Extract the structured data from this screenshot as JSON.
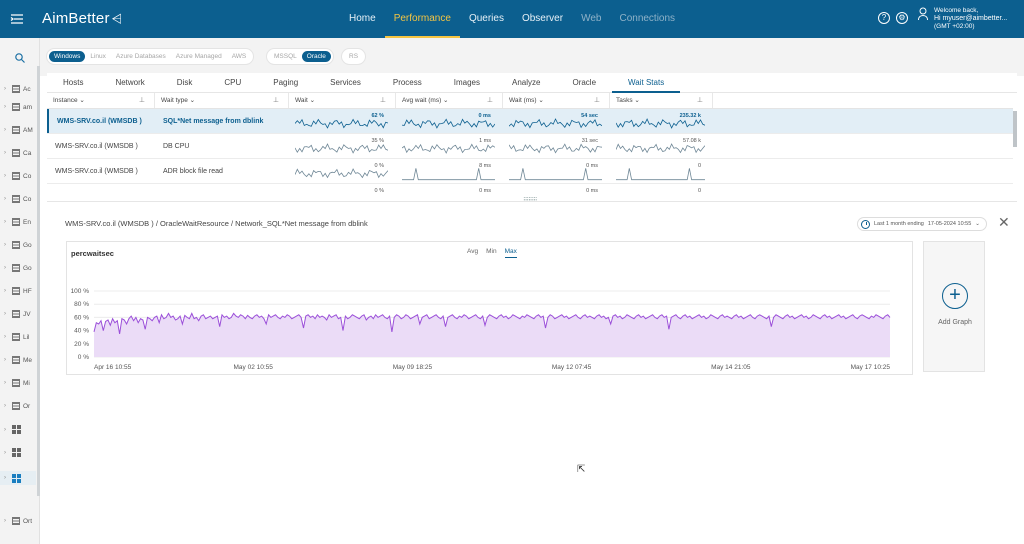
{
  "brand": {
    "name": "AimBetter"
  },
  "nav": [
    {
      "label": "Home",
      "state": "normal"
    },
    {
      "label": "Performance",
      "state": "active"
    },
    {
      "label": "Queries",
      "state": "normal"
    },
    {
      "label": "Observer",
      "state": "normal"
    },
    {
      "label": "Web",
      "state": "disabled"
    },
    {
      "label": "Connections",
      "state": "disabled"
    }
  ],
  "user": {
    "greeting": "Welcome back,",
    "name": "Hi myuser@aimbetter...",
    "tz": "(GMT +02:00)"
  },
  "rail": {
    "items": [
      {
        "label": "Ac",
        "type": "list"
      },
      {
        "label": "am",
        "type": "list"
      },
      {
        "label": "AM",
        "type": "list"
      },
      {
        "label": "Ca",
        "type": "list"
      },
      {
        "label": "Co",
        "type": "list"
      },
      {
        "label": "Co",
        "type": "list"
      },
      {
        "label": "En",
        "type": "list"
      },
      {
        "label": "Go",
        "type": "list"
      },
      {
        "label": "Go",
        "type": "list"
      },
      {
        "label": "HF",
        "type": "list"
      },
      {
        "label": "JV",
        "type": "list"
      },
      {
        "label": "Lil",
        "type": "list"
      },
      {
        "label": "Me",
        "type": "list"
      },
      {
        "label": "Mi",
        "type": "list"
      },
      {
        "label": "Or",
        "type": "list"
      },
      {
        "label": "",
        "type": "win"
      },
      {
        "label": "",
        "type": "win"
      },
      {
        "label": "",
        "type": "win-selected"
      },
      {
        "label": "Ort",
        "type": "list"
      }
    ]
  },
  "filters": {
    "os": [
      {
        "label": "Windows",
        "on": true
      },
      {
        "label": "Linux",
        "on": false
      },
      {
        "label": "Azure Databases",
        "on": false
      },
      {
        "label": "Azure Managed",
        "on": false
      },
      {
        "label": "AWS",
        "on": false
      }
    ],
    "db": [
      {
        "label": "MSSQL",
        "on": false
      },
      {
        "label": "Oracle",
        "on": true
      }
    ],
    "other": [
      {
        "label": "RS",
        "on": false
      }
    ]
  },
  "tabs": [
    {
      "label": "Hosts",
      "active": false
    },
    {
      "label": "Network",
      "active": false
    },
    {
      "label": "Disk",
      "active": false
    },
    {
      "label": "CPU",
      "active": false
    },
    {
      "label": "Paging",
      "active": false
    },
    {
      "label": "Services",
      "active": false
    },
    {
      "label": "Process",
      "active": false
    },
    {
      "label": "Images",
      "active": false
    },
    {
      "label": "Analyze",
      "active": false
    },
    {
      "label": "Oracle",
      "active": false
    },
    {
      "label": "Wait Stats",
      "active": true
    }
  ],
  "grid": {
    "columns": [
      "Instance",
      "Wait type",
      "Wait",
      "Avg wait (ms)",
      "Wait (ms)",
      "Tasks"
    ],
    "rows": [
      {
        "instance": "WMS-SRV.co.il (WMSDB )",
        "wait_type": "SQL*Net message from dblink",
        "wait": "62 %",
        "avg_wait": "0 ms",
        "wait_ms": "54 sec",
        "tasks": "235.32 k",
        "selected": true
      },
      {
        "instance": "WMS-SRV.co.il (WMSDB )",
        "wait_type": "DB CPU",
        "wait": "35 %",
        "avg_wait": "1 ms",
        "wait_ms": "31 sec",
        "tasks": "57.08 k",
        "selected": false
      },
      {
        "instance": "WMS-SRV.co.il (WMSDB )",
        "wait_type": "ADR block file read",
        "wait": "0 %",
        "avg_wait": "8 ms",
        "wait_ms": "0 ms",
        "tasks": "0",
        "selected": false
      },
      {
        "instance": "",
        "wait_type": "",
        "wait": "0 %",
        "avg_wait": "0 ms",
        "wait_ms": "0 ms",
        "tasks": "0",
        "selected": false
      }
    ]
  },
  "detail": {
    "breadcrumb": "WMS-SRV.co.il (WMSDB ) / OracleWaitResource / Network_SQL*Net message from dblink",
    "range_label": "Last 1 month ending",
    "range_date": "17-05-2024 10:55",
    "agg_options": [
      "Avg",
      "Min",
      "Max"
    ],
    "agg_selected": "Max",
    "add_graph_label": "Add Graph"
  },
  "colors": {
    "brand": "#0c5f8f",
    "active_nav": "#f5c542",
    "series": "#9b4fd9",
    "series_fill": "#ebdcf7"
  },
  "chart_data": {
    "type": "area",
    "title": "percwaitsec",
    "xlabel": "",
    "ylabel": "",
    "ylim": [
      0,
      100
    ],
    "yticks": [
      "0 %",
      "20 %",
      "40 %",
      "60 %",
      "80 %",
      "100 %"
    ],
    "xticks": [
      "Apr 16 10:55",
      "May 02 10:55",
      "May 09 18:25",
      "May 12 07:45",
      "May 14 21:05",
      "May 17 10:25"
    ],
    "series": [
      {
        "values": [
          38,
          52,
          50,
          55,
          40,
          54,
          56,
          48,
          58,
          52,
          55,
          35,
          58,
          56,
          50,
          58,
          62,
          55,
          60,
          52,
          58,
          56,
          42,
          60,
          58,
          55,
          60,
          62,
          52,
          64,
          58,
          60,
          66,
          60,
          62,
          56,
          58,
          62,
          50,
          63,
          60,
          58,
          66,
          58,
          60,
          55,
          62,
          64,
          58,
          60,
          62,
          58,
          60,
          62,
          46,
          64,
          60,
          62,
          58,
          60,
          66,
          62,
          60,
          64,
          62,
          58,
          63,
          60,
          58,
          62,
          64,
          60,
          62,
          58,
          50,
          64,
          60,
          62,
          64,
          60,
          58,
          62,
          60,
          64,
          62,
          58,
          60,
          62,
          64,
          60,
          44,
          62,
          64,
          60,
          62,
          58,
          64,
          60,
          62,
          60,
          56,
          64,
          60,
          62,
          64,
          58,
          60,
          40,
          62,
          58,
          60,
          64,
          62,
          60,
          58,
          62,
          64,
          56,
          60,
          62,
          58,
          64,
          60,
          62,
          64,
          60,
          58,
          62,
          38,
          60,
          64,
          62,
          58,
          60,
          64,
          62,
          58,
          60,
          62,
          64,
          50,
          60,
          62,
          64,
          58,
          60,
          62,
          64,
          60,
          58,
          62,
          46,
          60,
          62,
          64,
          60,
          58,
          62,
          60,
          64,
          62,
          58,
          60,
          62,
          64,
          60,
          58,
          62,
          48,
          60,
          64,
          62,
          60,
          58,
          62,
          64,
          60,
          62,
          58,
          60,
          64,
          62,
          60,
          58,
          62,
          60,
          64,
          62,
          60,
          58,
          62,
          64,
          60,
          62,
          44,
          60,
          64,
          62,
          58,
          60,
          62,
          64,
          60,
          62,
          58,
          60,
          62,
          64,
          60,
          58,
          62,
          64,
          60,
          62,
          60,
          58,
          62,
          64,
          60,
          62,
          58,
          60,
          50,
          62,
          64,
          60,
          62,
          58,
          60,
          64,
          62,
          60,
          58,
          62,
          64,
          60,
          62,
          58,
          60,
          62,
          64,
          60,
          58,
          62,
          64,
          60,
          62,
          42,
          60,
          62,
          64,
          60,
          58,
          62,
          64,
          60,
          62,
          58,
          60,
          62,
          64,
          60,
          62,
          58,
          60,
          64,
          62,
          60,
          58,
          62,
          64,
          60,
          62,
          60,
          58,
          62,
          64,
          60,
          62,
          58,
          60,
          62,
          64,
          60,
          58,
          62,
          64,
          62,
          60,
          58,
          62,
          46,
          60,
          64,
          62,
          60,
          58,
          62,
          64,
          60,
          62,
          58,
          60,
          62,
          64,
          60,
          62,
          58,
          60,
          64,
          62,
          60,
          58,
          62,
          64,
          60,
          62,
          58,
          60,
          62,
          64,
          60,
          62,
          58,
          60,
          62,
          64,
          60,
          58,
          62,
          64,
          62,
          60,
          58,
          62,
          60,
          64,
          62,
          60,
          58,
          62,
          64,
          60
        ]
      }
    ]
  }
}
